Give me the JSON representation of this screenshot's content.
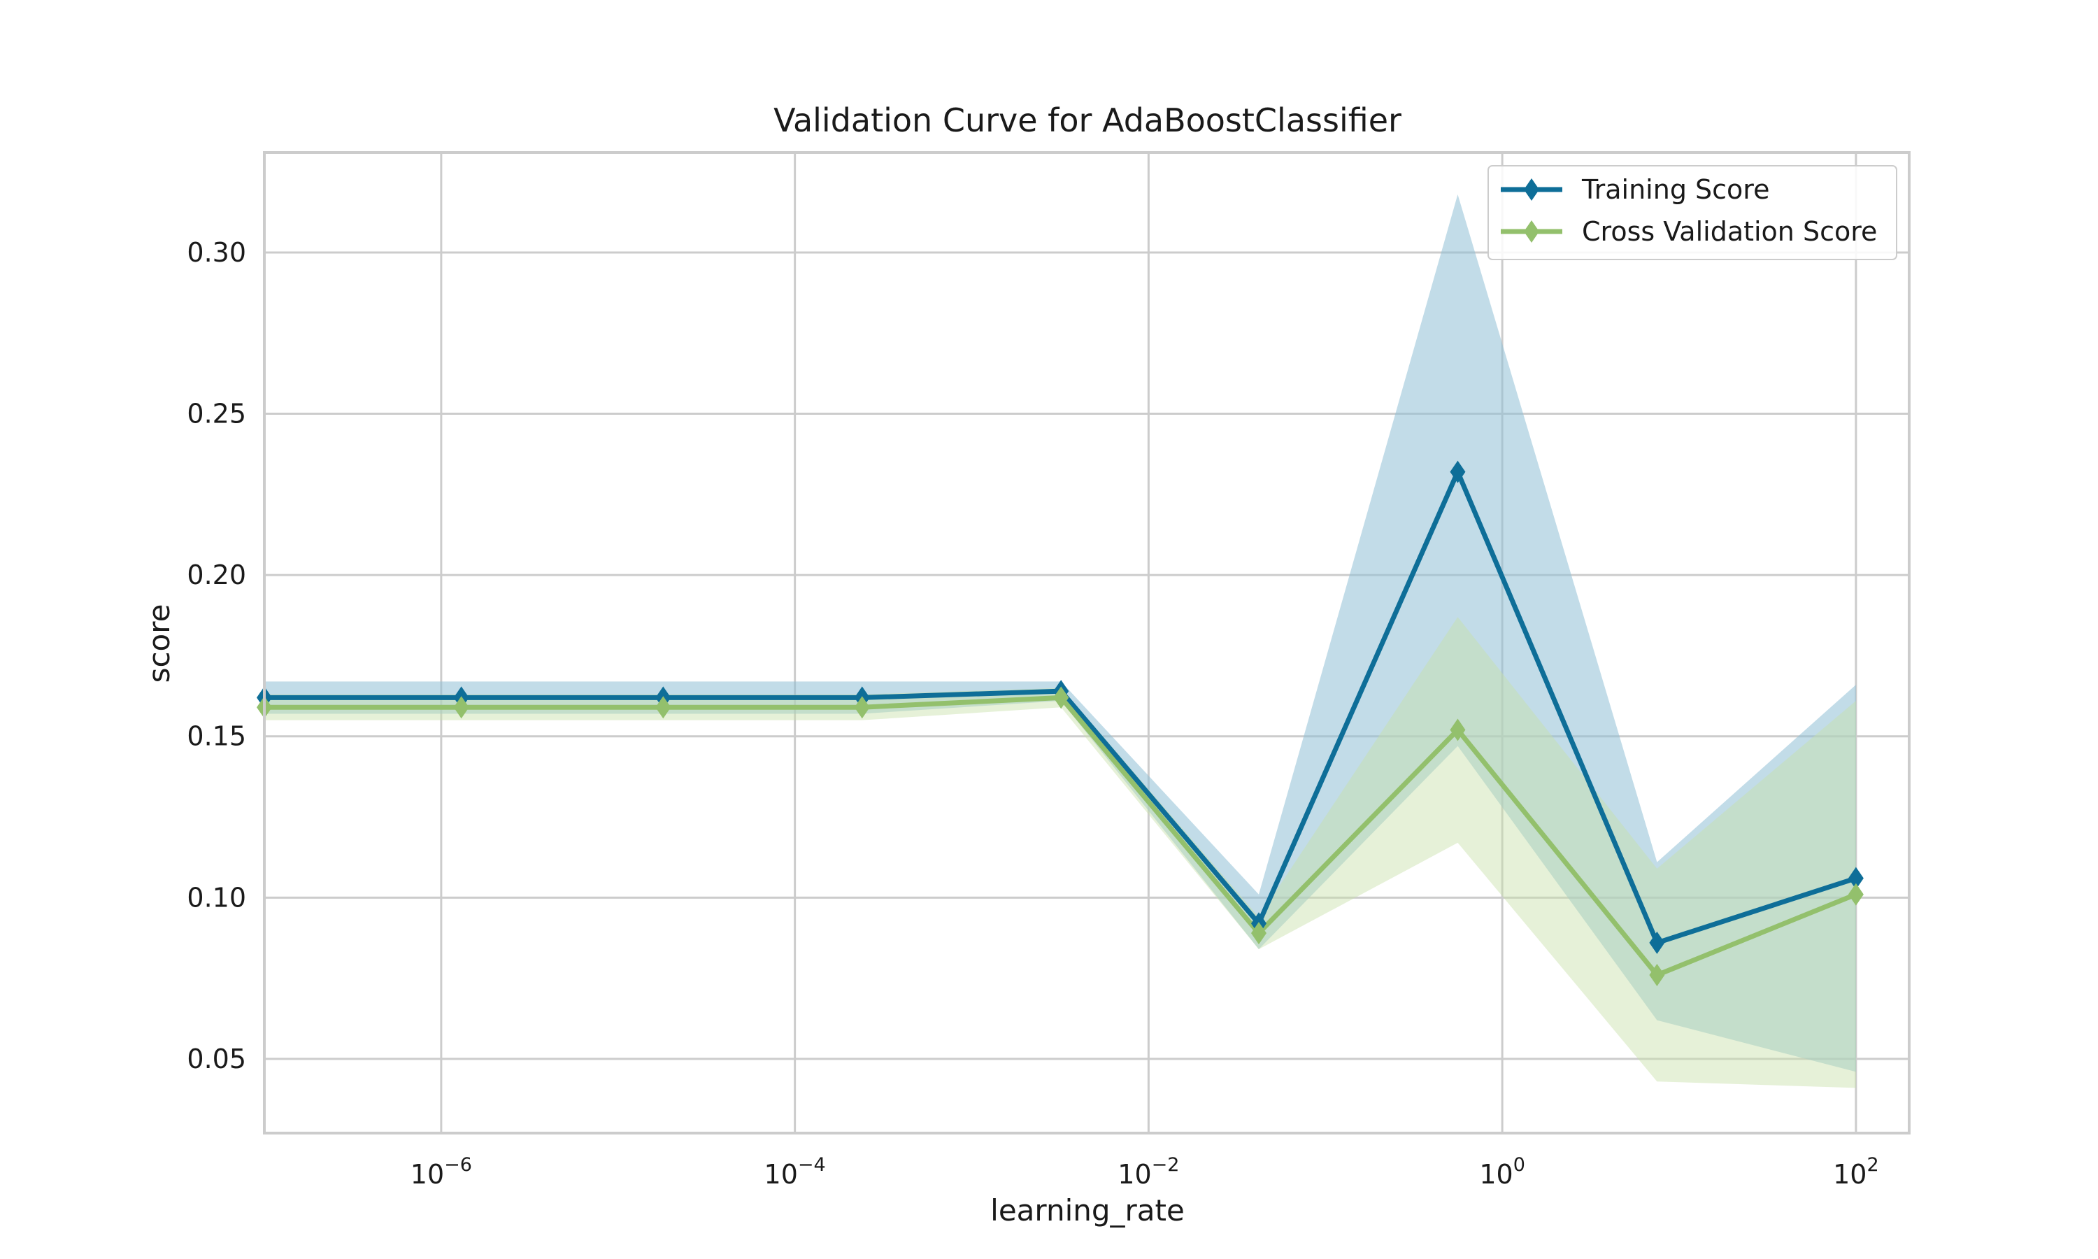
{
  "chart_data": {
    "type": "line",
    "title": "Validation Curve for AdaBoostClassifier",
    "xlabel": "learning_rate",
    "ylabel": "score",
    "xscale": "log",
    "xlim": [
      1e-07,
      200
    ],
    "ylim": [
      0.027,
      0.331
    ],
    "grid": true,
    "legend_position": "top-right",
    "x": [
      1e-07,
      1.3e-06,
      1.8e-05,
      0.00024,
      0.0032,
      0.042,
      0.56,
      7.5,
      100
    ],
    "x_ticks": [
      {
        "value": 1e-06,
        "base": "10",
        "exp": "−6"
      },
      {
        "value": 0.0001,
        "base": "10",
        "exp": "−4"
      },
      {
        "value": 0.01,
        "base": "10",
        "exp": "−2"
      },
      {
        "value": 1,
        "base": "10",
        "exp": "0"
      },
      {
        "value": 100,
        "base": "10",
        "exp": "2"
      }
    ],
    "y_ticks": [
      "0.05",
      "0.10",
      "0.15",
      "0.20",
      "0.25",
      "0.30"
    ],
    "series": [
      {
        "name": "Training Score",
        "color": "#0e6e98",
        "values": [
          0.162,
          0.162,
          0.162,
          0.162,
          0.164,
          0.092,
          0.232,
          0.086,
          0.106
        ],
        "lower": [
          0.157,
          0.157,
          0.157,
          0.157,
          0.161,
          0.084,
          0.147,
          0.062,
          0.046
        ],
        "upper": [
          0.167,
          0.167,
          0.167,
          0.167,
          0.167,
          0.101,
          0.318,
          0.111,
          0.166
        ]
      },
      {
        "name": "Cross Validation Score",
        "color": "#93c06c",
        "values": [
          0.159,
          0.159,
          0.159,
          0.159,
          0.162,
          0.089,
          0.152,
          0.076,
          0.101
        ],
        "lower": [
          0.155,
          0.155,
          0.155,
          0.155,
          0.159,
          0.084,
          0.117,
          0.043,
          0.041
        ],
        "upper": [
          0.163,
          0.163,
          0.163,
          0.163,
          0.165,
          0.094,
          0.187,
          0.109,
          0.161
        ]
      }
    ]
  },
  "colors": {
    "grid": "#cccccc",
    "frame": "#cccccc",
    "training_band": "#8fbfd6",
    "cv_band": "#c8dfa9"
  }
}
